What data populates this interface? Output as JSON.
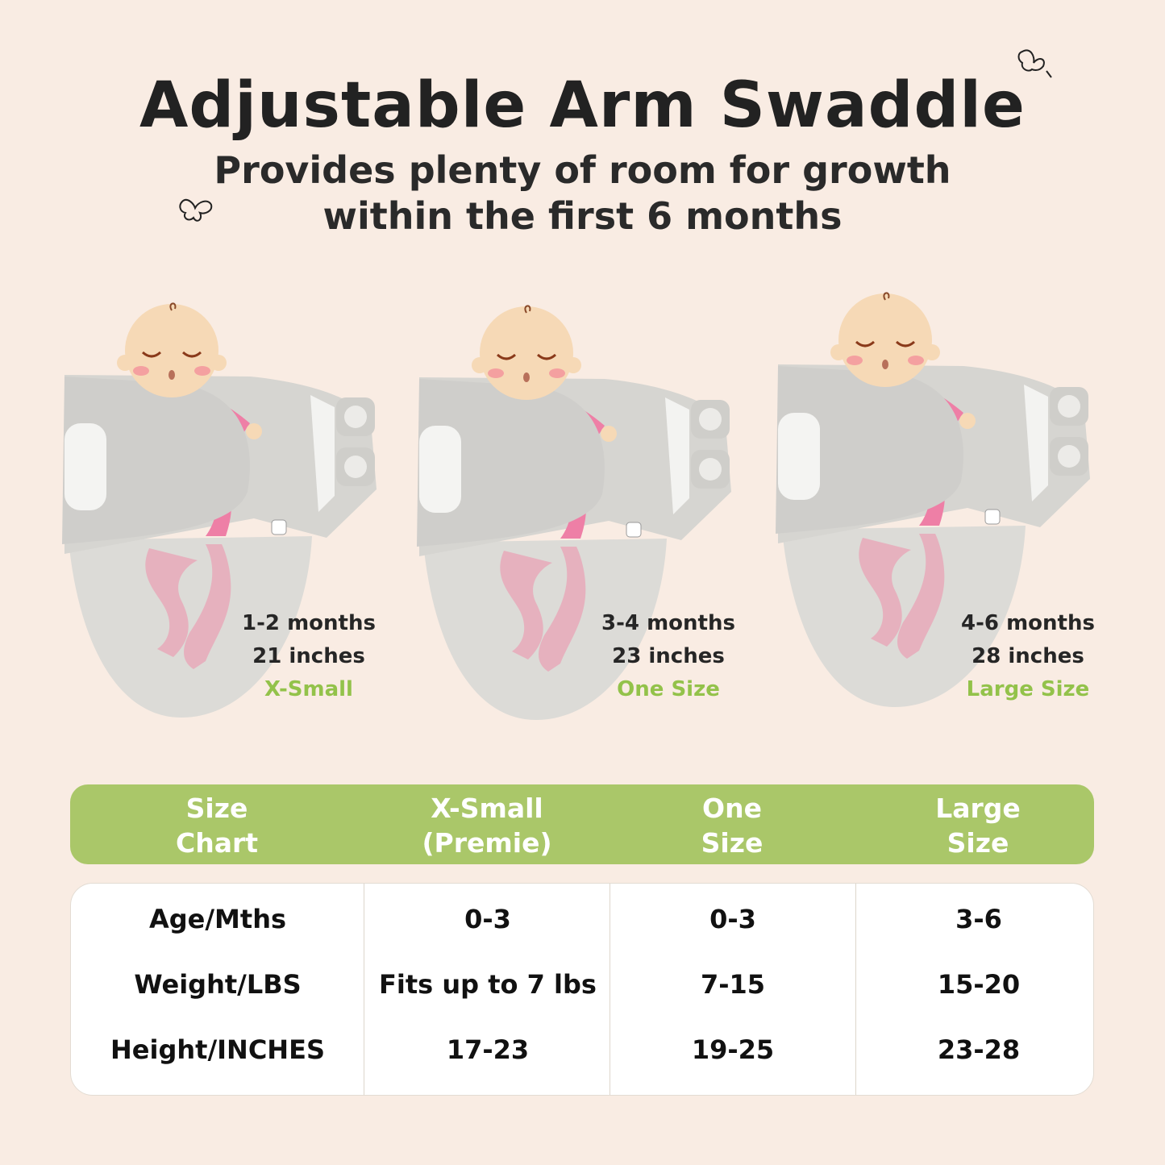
{
  "header": {
    "title": "Adjustable Arm Swaddle",
    "subtitle_line1": "Provides plenty of room for growth",
    "subtitle_line2": "within the first 6 months"
  },
  "colors": {
    "background": "#f9ece3",
    "accent_green": "#aac769",
    "size_text_green": "#93c24a",
    "swaddle_gray": "#d9d8d4",
    "onesie_pink": "#ee7fa6"
  },
  "panels": [
    {
      "age": "1-2 months",
      "length": "21 inches",
      "size": "X-Small"
    },
    {
      "age": "3-4 months",
      "length": "23 inches",
      "size": "One Size"
    },
    {
      "age": "4-6 months",
      "length": "28 inches",
      "size": "Large Size"
    }
  ],
  "table": {
    "headers": [
      {
        "line1": "Size",
        "line2": "Chart"
      },
      {
        "line1": "X-Small",
        "line2": "(Premie)"
      },
      {
        "line1": "One",
        "line2": "Size"
      },
      {
        "line1": "Large",
        "line2": "Size"
      }
    ],
    "rows": [
      [
        "Age/Mths",
        "0-3",
        "0-3",
        "3-6"
      ],
      [
        "Weight/LBS",
        "Fits up to 7 lbs",
        "7-15",
        "15-20"
      ],
      [
        "Height/INCHES",
        "17-23",
        "19-25",
        "23-28"
      ]
    ]
  }
}
